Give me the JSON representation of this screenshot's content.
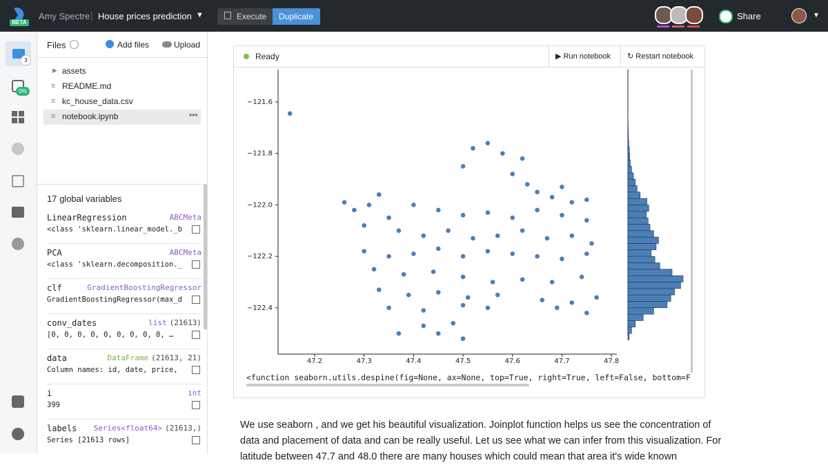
{
  "header": {
    "beta": "BETA",
    "user": "Amy Spectre",
    "project": "House prices prediction",
    "execute": "Execute",
    "duplicate": "Duplicate",
    "share": "Share"
  },
  "sidebar": {
    "files_badge": "3",
    "progress_badge": "0%"
  },
  "files": {
    "title": "Files",
    "add": "Add files",
    "upload": "Upload",
    "items": [
      "assets",
      "README.md",
      "kc_house_data.csv",
      "notebook.ipynb"
    ]
  },
  "variables": {
    "title": "17 global variables",
    "items": [
      {
        "name": "LinearRegression",
        "kind": "ABCMeta",
        "shape": "",
        "value": "<class 'sklearn.linear_model._b"
      },
      {
        "name": "PCA",
        "kind": "ABCMeta",
        "shape": "",
        "value": "<class 'sklearn.decomposition._"
      },
      {
        "name": "clf",
        "kind": "GradientBoostingRegressor",
        "shape": "",
        "value": "GradientBoostingRegressor(max_d"
      },
      {
        "name": "conv_dates",
        "kind": "list",
        "shape": "(21613)",
        "value": "[0, 0, 0, 0, 0, 0, 0, 0, 0, …"
      },
      {
        "name": "data",
        "kind": "DataFrame",
        "shape": "(21613, 21)",
        "value": "Column names: id, date, price, …"
      },
      {
        "name": "i",
        "kind": "int",
        "shape": "",
        "value": "399"
      },
      {
        "name": "labels",
        "kind": "Series<float64>",
        "shape": "(21613,)",
        "value": "Series [21613 rows]"
      }
    ]
  },
  "notebook": {
    "status": "Ready",
    "run": "Run notebook",
    "restart": "Restart notebook",
    "output": "<function seaborn.utils.despine(fig=None, ax=None, top=True, right=True, left=False, bottom=False, offset=None, trim=False)>",
    "paragraph": [
      "We use seaborn , and we get his beautiful visualization. Joinplot function helps us see the concentration of",
      "data and placement of data and can be really useful. Let us see what we can infer from this visualization. For",
      "latitude between 47.7 and 48.0 there are many houses which could mean that area it's wide known"
    ]
  },
  "chart_data": [
    {
      "type": "scatter",
      "color": "#4c7fb5",
      "x": [
        47.15,
        47.52,
        47.55,
        47.58,
        47.5,
        47.6,
        47.62,
        47.63,
        47.65,
        47.68,
        47.7,
        47.72,
        47.75,
        47.26,
        47.28,
        47.31,
        47.33,
        47.35,
        47.3,
        47.4,
        47.45,
        47.5,
        47.55,
        47.6,
        47.65,
        47.7,
        47.75,
        47.37,
        47.42,
        47.47,
        47.52,
        47.57,
        47.62,
        47.67,
        47.72,
        47.76,
        47.3,
        47.35,
        47.4,
        47.45,
        47.5,
        47.55,
        47.6,
        47.65,
        47.7,
        47.75,
        47.32,
        47.38,
        47.44,
        47.5,
        47.56,
        47.62,
        47.68,
        47.74,
        47.33,
        47.39,
        47.45,
        47.51,
        47.57,
        47.66,
        47.72,
        47.77,
        47.35,
        47.42,
        47.5,
        47.55,
        47.69,
        47.75,
        47.42,
        47.45,
        47.48,
        47.37,
        47.5
      ],
      "y": [
        -121.645,
        -121.78,
        -121.76,
        -121.8,
        -121.85,
        -121.88,
        -121.82,
        -121.92,
        -121.95,
        -121.97,
        -121.93,
        -121.99,
        -121.98,
        -121.99,
        -122.02,
        -122.0,
        -121.96,
        -122.05,
        -122.08,
        -122.0,
        -122.02,
        -122.04,
        -122.03,
        -122.05,
        -122.02,
        -122.04,
        -122.06,
        -122.1,
        -122.12,
        -122.1,
        -122.13,
        -122.12,
        -122.1,
        -122.13,
        -122.12,
        -122.15,
        -122.18,
        -122.2,
        -122.19,
        -122.17,
        -122.2,
        -122.18,
        -122.19,
        -122.2,
        -122.21,
        -122.19,
        -122.25,
        -122.27,
        -122.26,
        -122.28,
        -122.3,
        -122.29,
        -122.3,
        -122.28,
        -122.33,
        -122.35,
        -122.34,
        -122.36,
        -122.35,
        -122.37,
        -122.38,
        -122.36,
        -122.4,
        -122.41,
        -122.39,
        -122.4,
        -122.4,
        -122.42,
        -122.47,
        -122.5,
        -122.46,
        -122.5,
        -122.52
      ],
      "xlim": [
        47.126,
        47.811
      ],
      "ylim": [
        -122.58,
        -121.474
      ],
      "xticks": [
        47.2,
        47.3,
        47.4,
        47.5,
        47.6,
        47.7,
        47.8
      ],
      "yticks": [
        {
          "value": -121.6,
          "label": "−121.6"
        },
        {
          "value": -121.8,
          "label": "−121.8"
        },
        {
          "value": -122.0,
          "label": "−122.0"
        },
        {
          "value": -122.2,
          "label": "−122.2"
        },
        {
          "value": -122.4,
          "label": "−122.4"
        }
      ]
    },
    {
      "type": "histogram",
      "orientation": "horizontal",
      "color": "#4c7fb5",
      "bins": [
        -122.525,
        -122.5,
        -122.475,
        -122.45,
        -122.425,
        -122.4,
        -122.375,
        -122.35,
        -122.325,
        -122.3,
        -122.275,
        -122.25,
        -122.225,
        -122.2,
        -122.175,
        -122.15,
        -122.125,
        -122.1,
        -122.075,
        -122.05,
        -122.025,
        -122.0,
        -121.975,
        -121.95,
        -121.925,
        -121.9,
        -121.875,
        -121.85,
        -121.825,
        -121.8,
        -121.775,
        -121.75,
        -121.725,
        -121.7,
        -121.675,
        -121.65,
        -121.625
      ],
      "counts": [
        20,
        60,
        120,
        250,
        420,
        640,
        700,
        760,
        860,
        900,
        720,
        520,
        440,
        380,
        460,
        500,
        420,
        360,
        330,
        300,
        340,
        310,
        200,
        150,
        120,
        90,
        60,
        40,
        30,
        25,
        15,
        10,
        6,
        4,
        2,
        1
      ]
    }
  ]
}
